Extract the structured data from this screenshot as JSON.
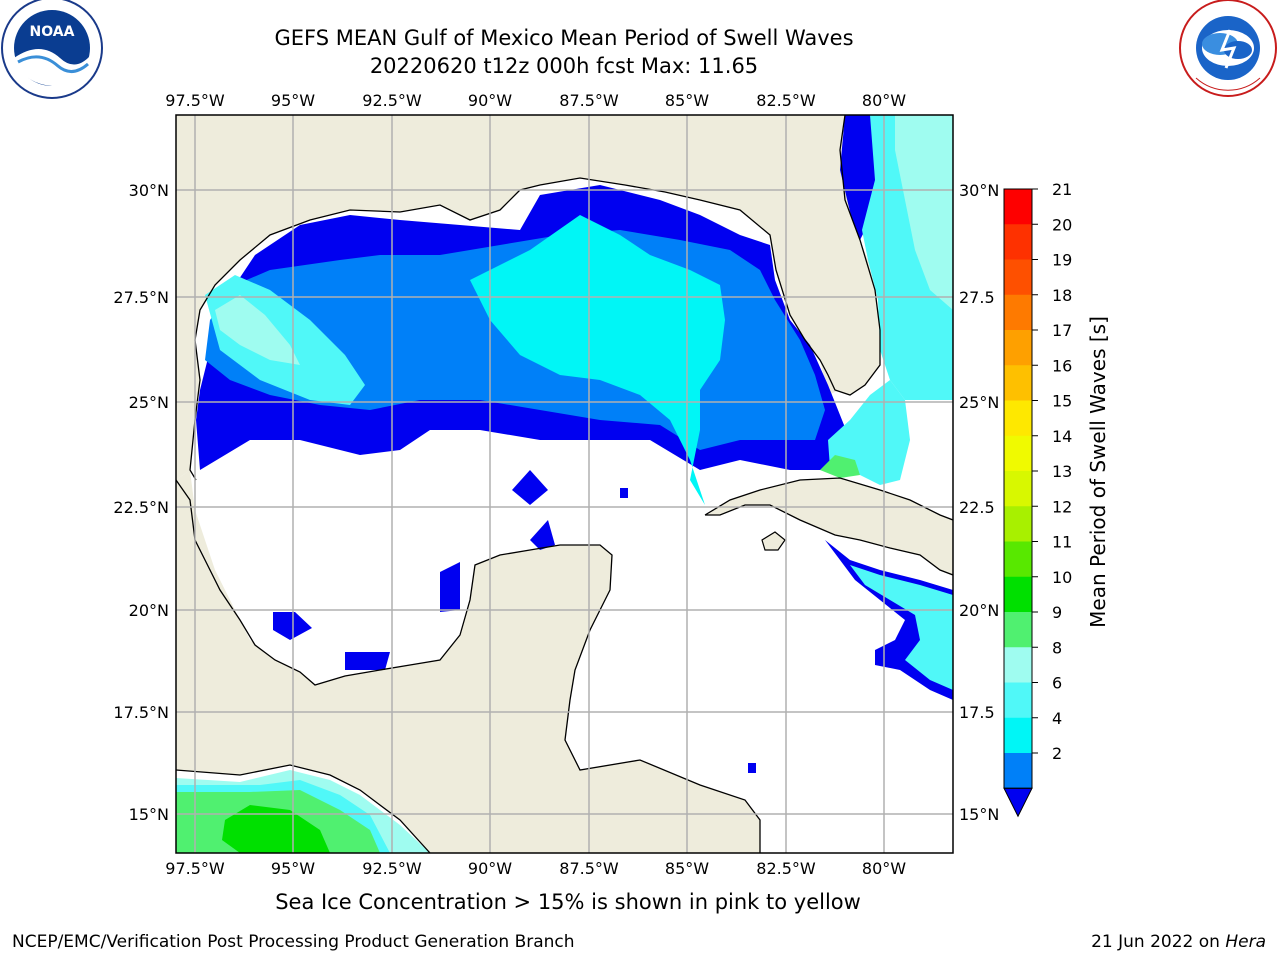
{
  "title_line1": "GEFS MEAN Gulf of Mexico Mean Period of Swell Waves",
  "title_line2": "20220620 t12z 000h fcst   Max: 11.65",
  "caption": "Sea Ice Concentration > 15% is shown in pink to yellow",
  "footer_left": "NCEP/EMC/Verification Post Processing Product Generation Branch",
  "footer_right_prefix": "21 Jun 2022 on ",
  "footer_right_host": "Hera",
  "logos": {
    "left": "NOAA",
    "left_ring": "NATIONAL OCEANIC AND ATMOSPHERIC ADMINISTRATION · U.S. DEPARTMENT OF COMMERCE",
    "right_ring": "NATIONAL WEATHER SERVICE"
  },
  "map": {
    "lon_labels": [
      "97.5°W",
      "95°W",
      "92.5°W",
      "90°W",
      "87.5°W",
      "85°W",
      "82.5°W",
      "80°W"
    ],
    "lat_labels_left": [
      "30°N",
      "27.5°N",
      "25°N",
      "22.5°N",
      "20°N",
      "17.5°N",
      "15°N"
    ],
    "lat_labels_right": [
      "30°N",
      "27.5",
      "25°N",
      "22.5",
      "20°N",
      "17.5",
      "15°N"
    ],
    "land_color": "#eeecdc",
    "ocean_color": "#ffffff",
    "grid_color": "#b0b0b0"
  },
  "colorbar": {
    "label": "Mean Period of Swell Waves [s]",
    "ticks": [
      "21",
      "20",
      "19",
      "18",
      "17",
      "16",
      "15",
      "14",
      "13",
      "12",
      "11",
      "10",
      "9",
      "8",
      "6",
      "4",
      "2"
    ],
    "colors": [
      "#fe0000",
      "#fe3100",
      "#fe5000",
      "#fe7a00",
      "#fea000",
      "#fec000",
      "#fee800",
      "#f0fa00",
      "#d8f800",
      "#a8f000",
      "#58e800",
      "#00e000",
      "#50f070",
      "#9ffcf0",
      "#50f8f8",
      "#00f6f6",
      "#0080f8"
    ],
    "extend_color": "#0000f0"
  }
}
